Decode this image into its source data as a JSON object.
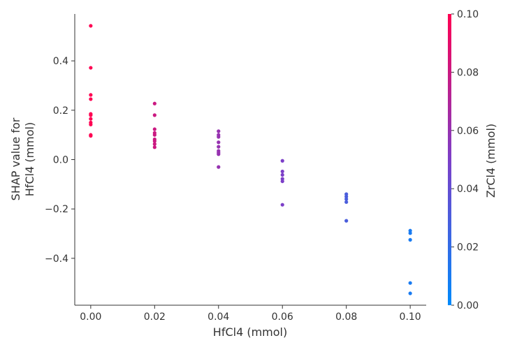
{
  "chart_data": {
    "type": "scatter",
    "title": "",
    "xlabel": "HfCl4 (mmol)",
    "ylabel_lines": [
      "SHAP value for",
      "HfCl4 (mmol)"
    ],
    "colorbar_label": "ZrCl4 (mmol)",
    "xlim": [
      -0.005,
      0.105
    ],
    "ylim": [
      -0.59,
      0.59
    ],
    "x_ticks": [
      {
        "value": 0.0,
        "label": "0.00"
      },
      {
        "value": 0.02,
        "label": "0.02"
      },
      {
        "value": 0.04,
        "label": "0.04"
      },
      {
        "value": 0.06,
        "label": "0.06"
      },
      {
        "value": 0.08,
        "label": "0.08"
      },
      {
        "value": 0.1,
        "label": "0.10"
      }
    ],
    "y_ticks": [
      {
        "value": 0.4,
        "label": "0.4"
      },
      {
        "value": 0.2,
        "label": "0.2"
      },
      {
        "value": 0.0,
        "label": "0.0"
      },
      {
        "value": -0.2,
        "label": "−0.2"
      },
      {
        "value": -0.4,
        "label": "−0.4"
      }
    ],
    "colorbar": {
      "range": [
        0.0,
        0.1
      ],
      "ticks": [
        {
          "value": 0.1,
          "label": "0.10"
        },
        {
          "value": 0.08,
          "label": "0.08"
        },
        {
          "value": 0.06,
          "label": "0.06"
        },
        {
          "value": 0.04,
          "label": "0.04"
        },
        {
          "value": 0.02,
          "label": "0.02"
        },
        {
          "value": 0.0,
          "label": "0.00"
        }
      ],
      "color_low": "#008afb",
      "color_mid": "#7c3fc8",
      "color_high": "#ff0052"
    },
    "points": [
      {
        "x": 0.0,
        "y": 0.542,
        "c": 0.1
      },
      {
        "x": 0.0,
        "y": 0.372,
        "c": 0.1
      },
      {
        "x": 0.0,
        "y": 0.262,
        "c": 0.1
      },
      {
        "x": 0.0,
        "y": 0.245,
        "c": 0.1
      },
      {
        "x": 0.0,
        "y": 0.185,
        "c": 0.1
      },
      {
        "x": 0.0,
        "y": 0.18,
        "c": 0.1
      },
      {
        "x": 0.0,
        "y": 0.165,
        "c": 0.1
      },
      {
        "x": 0.0,
        "y": 0.15,
        "c": 0.1
      },
      {
        "x": 0.0,
        "y": 0.142,
        "c": 0.1
      },
      {
        "x": 0.0,
        "y": 0.1,
        "c": 0.1
      },
      {
        "x": 0.0,
        "y": 0.096,
        "c": 0.1
      },
      {
        "x": 0.02,
        "y": 0.227,
        "c": 0.08
      },
      {
        "x": 0.02,
        "y": 0.18,
        "c": 0.08
      },
      {
        "x": 0.02,
        "y": 0.123,
        "c": 0.08
      },
      {
        "x": 0.02,
        "y": 0.108,
        "c": 0.08
      },
      {
        "x": 0.02,
        "y": 0.1,
        "c": 0.08
      },
      {
        "x": 0.02,
        "y": 0.082,
        "c": 0.08
      },
      {
        "x": 0.02,
        "y": 0.075,
        "c": 0.08
      },
      {
        "x": 0.02,
        "y": 0.063,
        "c": 0.08
      },
      {
        "x": 0.02,
        "y": 0.05,
        "c": 0.08
      },
      {
        "x": 0.04,
        "y": 0.115,
        "c": 0.06
      },
      {
        "x": 0.04,
        "y": 0.1,
        "c": 0.06
      },
      {
        "x": 0.04,
        "y": 0.092,
        "c": 0.06
      },
      {
        "x": 0.04,
        "y": 0.07,
        "c": 0.06
      },
      {
        "x": 0.04,
        "y": 0.052,
        "c": 0.06
      },
      {
        "x": 0.04,
        "y": 0.035,
        "c": 0.06
      },
      {
        "x": 0.04,
        "y": 0.028,
        "c": 0.06
      },
      {
        "x": 0.04,
        "y": 0.022,
        "c": 0.06
      },
      {
        "x": 0.04,
        "y": -0.03,
        "c": 0.06
      },
      {
        "x": 0.06,
        "y": -0.005,
        "c": 0.05
      },
      {
        "x": 0.06,
        "y": -0.048,
        "c": 0.05
      },
      {
        "x": 0.06,
        "y": -0.062,
        "c": 0.05
      },
      {
        "x": 0.06,
        "y": -0.078,
        "c": 0.05
      },
      {
        "x": 0.06,
        "y": -0.088,
        "c": 0.05
      },
      {
        "x": 0.06,
        "y": -0.183,
        "c": 0.05
      },
      {
        "x": 0.08,
        "y": -0.14,
        "c": 0.03
      },
      {
        "x": 0.08,
        "y": -0.15,
        "c": 0.03
      },
      {
        "x": 0.08,
        "y": -0.16,
        "c": 0.03
      },
      {
        "x": 0.08,
        "y": -0.172,
        "c": 0.03
      },
      {
        "x": 0.08,
        "y": -0.248,
        "c": 0.03
      },
      {
        "x": 0.1,
        "y": -0.288,
        "c": 0.01
      },
      {
        "x": 0.1,
        "y": -0.298,
        "c": 0.01
      },
      {
        "x": 0.1,
        "y": -0.325,
        "c": 0.01
      },
      {
        "x": 0.1,
        "y": -0.5,
        "c": 0.01
      },
      {
        "x": 0.1,
        "y": -0.542,
        "c": 0.01
      }
    ]
  }
}
